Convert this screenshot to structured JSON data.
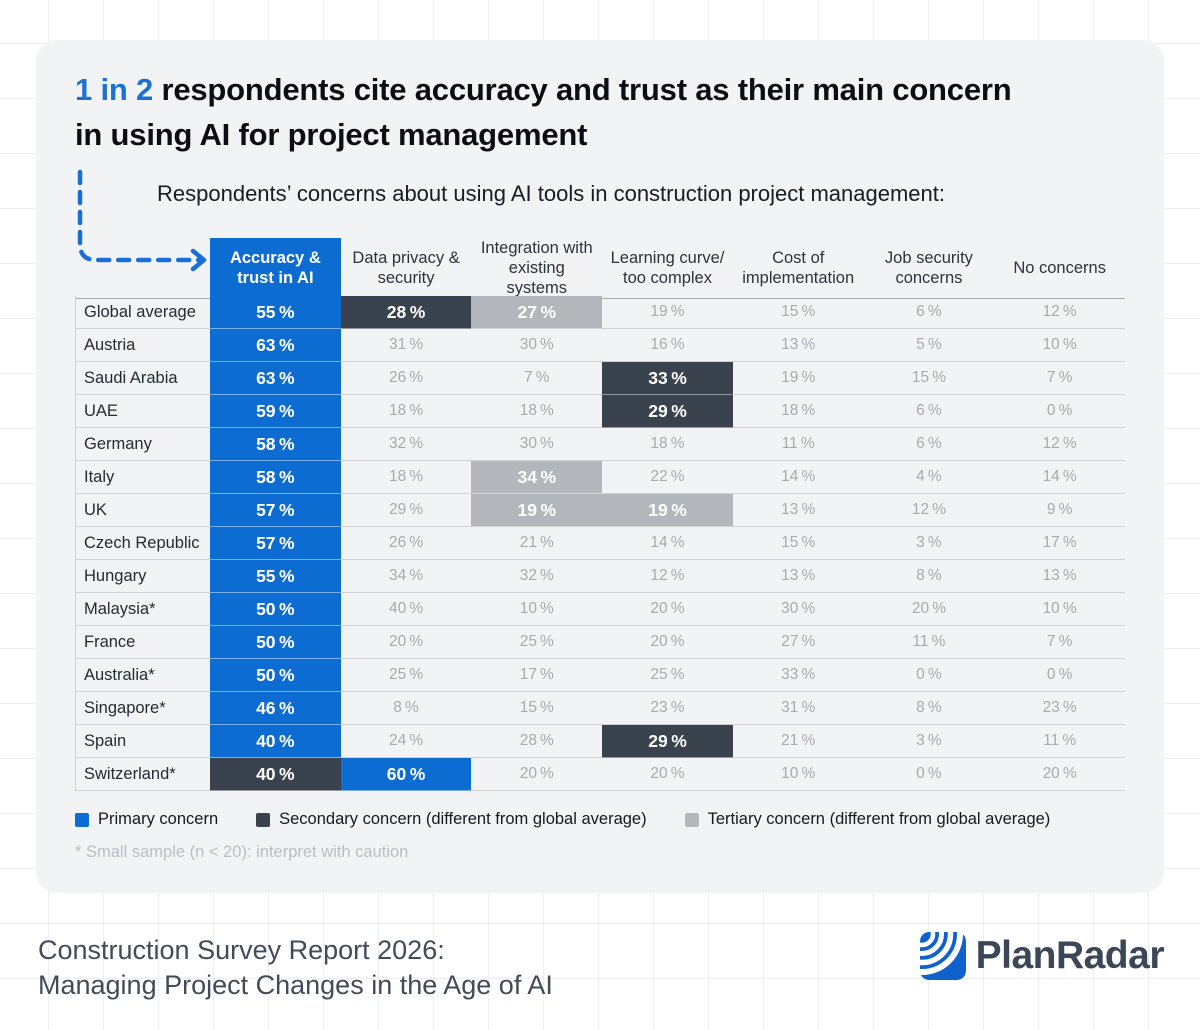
{
  "header": {
    "highlight": "1 in 2",
    "title_rest": " respondents cite accuracy and trust as their main concern in using AI for project management",
    "subtitle": "Respondents’ concerns about using AI tools in construction project management:"
  },
  "chart_data": {
    "type": "table",
    "title": "Respondents’ concerns about using AI tools in construction project management",
    "unit": "%",
    "columns": [
      "Accuracy & trust in AI",
      "Data privacy & security",
      "Integration with existing systems",
      "Learning curve/ too complex",
      "Cost of implementation",
      "Job security concerns",
      "No concerns"
    ],
    "rows": [
      {
        "label": "Global average",
        "values": [
          55,
          28,
          27,
          19,
          15,
          6,
          12
        ],
        "styles": [
          "primary",
          "secondary",
          "tertiary",
          "none",
          "none",
          "none",
          "none"
        ]
      },
      {
        "label": "Austria",
        "values": [
          63,
          31,
          30,
          16,
          13,
          5,
          10
        ],
        "styles": [
          "primary",
          "none",
          "none",
          "none",
          "none",
          "none",
          "none"
        ]
      },
      {
        "label": "Saudi Arabia",
        "values": [
          63,
          26,
          7,
          33,
          19,
          15,
          7
        ],
        "styles": [
          "primary",
          "none",
          "none",
          "secondary",
          "none",
          "none",
          "none"
        ]
      },
      {
        "label": "UAE",
        "values": [
          59,
          18,
          18,
          29,
          18,
          6,
          0
        ],
        "styles": [
          "primary",
          "none",
          "none",
          "secondary",
          "none",
          "none",
          "none"
        ]
      },
      {
        "label": "Germany",
        "values": [
          58,
          32,
          30,
          18,
          11,
          6,
          12
        ],
        "styles": [
          "primary",
          "none",
          "none",
          "none",
          "none",
          "none",
          "none"
        ]
      },
      {
        "label": "Italy",
        "values": [
          58,
          18,
          34,
          22,
          14,
          4,
          14
        ],
        "styles": [
          "primary",
          "none",
          "tertiary",
          "none",
          "none",
          "none",
          "none"
        ]
      },
      {
        "label": "UK",
        "values": [
          57,
          29,
          19,
          19,
          13,
          12,
          9
        ],
        "styles": [
          "primary",
          "none",
          "tertiary",
          "tertiary",
          "none",
          "none",
          "none"
        ]
      },
      {
        "label": "Czech Republic",
        "values": [
          57,
          26,
          21,
          14,
          15,
          3,
          17
        ],
        "styles": [
          "primary",
          "none",
          "none",
          "none",
          "none",
          "none",
          "none"
        ]
      },
      {
        "label": "Hungary",
        "values": [
          55,
          34,
          32,
          12,
          13,
          8,
          13
        ],
        "styles": [
          "primary",
          "none",
          "none",
          "none",
          "none",
          "none",
          "none"
        ]
      },
      {
        "label": "Malaysia*",
        "values": [
          50,
          40,
          10,
          20,
          30,
          20,
          10
        ],
        "styles": [
          "primary",
          "none",
          "none",
          "none",
          "none",
          "none",
          "none"
        ]
      },
      {
        "label": "France",
        "values": [
          50,
          20,
          25,
          20,
          27,
          11,
          7
        ],
        "styles": [
          "primary",
          "none",
          "none",
          "none",
          "none",
          "none",
          "none"
        ]
      },
      {
        "label": "Australia*",
        "values": [
          50,
          25,
          17,
          25,
          33,
          0,
          0
        ],
        "styles": [
          "primary",
          "none",
          "none",
          "none",
          "none",
          "none",
          "none"
        ]
      },
      {
        "label": "Singapore*",
        "values": [
          46,
          8,
          15,
          23,
          31,
          8,
          23
        ],
        "styles": [
          "primary",
          "none",
          "none",
          "none",
          "none",
          "none",
          "none"
        ]
      },
      {
        "label": "Spain",
        "values": [
          40,
          24,
          28,
          29,
          21,
          3,
          11
        ],
        "styles": [
          "primary",
          "none",
          "none",
          "secondary",
          "none",
          "none",
          "none"
        ]
      },
      {
        "label": "Switzerland*",
        "values": [
          40,
          60,
          20,
          20,
          10,
          0,
          20
        ],
        "styles": [
          "secondary",
          "primary",
          "none",
          "none",
          "none",
          "none",
          "none"
        ]
      }
    ]
  },
  "legend": [
    {
      "label": "Primary concern",
      "style": "primary"
    },
    {
      "label": "Secondary concern (different from global average)",
      "style": "secondary"
    },
    {
      "label": "Tertiary concern (different from global average)",
      "style": "tertiary"
    }
  ],
  "footnote": "* Small sample (n < 20): interpret with caution",
  "footer": {
    "line1": "Construction Survey Report 2026:",
    "line2": "Managing Project Changes in the Age of AI",
    "brand": "PlanRadar"
  },
  "colors": {
    "primary": "#0d6cd2",
    "secondary": "#3a434d",
    "tertiary": "#b3b7bb",
    "title_blue": "#1a73d2",
    "logo_blue": "#0f62cc"
  }
}
